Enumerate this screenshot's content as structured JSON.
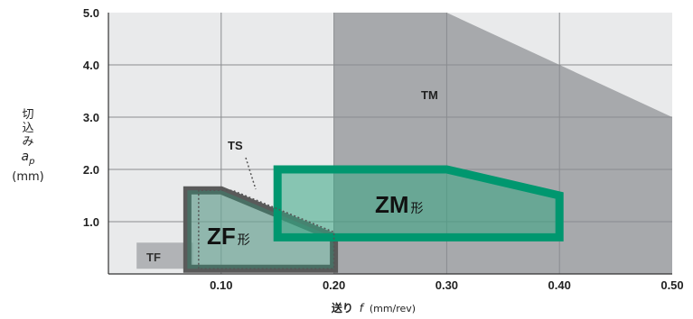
{
  "chart_data": {
    "type": "area",
    "xlabel": "送り",
    "xlabel_symbol": "f",
    "xlabel_unit": "(mm/rev)",
    "ylabel_lines": [
      "切",
      "込",
      "み"
    ],
    "ylabel_symbol": "a",
    "ylabel_subscript": "p",
    "ylabel_unit": "(mm)",
    "xlim": [
      0,
      0.5
    ],
    "ylim": [
      0,
      5.0
    ],
    "x_ticks": [
      "0.10",
      "0.20",
      "0.30",
      "0.40",
      "0.50"
    ],
    "y_ticks": [
      "1.0",
      "2.0",
      "3.0",
      "4.0",
      "5.0"
    ],
    "grid": true,
    "regions": [
      {
        "name": "TM",
        "label": "TM",
        "color": "#a7a9ac",
        "polygon": [
          [
            0.2,
            0
          ],
          [
            0.2,
            5.0
          ],
          [
            0.3,
            5.0
          ],
          [
            0.5,
            3.0
          ],
          [
            0.5,
            0
          ]
        ]
      },
      {
        "name": "TF",
        "label": "TF",
        "color": "#b1b3b6",
        "polygon": [
          [
            0.025,
            0.1
          ],
          [
            0.075,
            0.1
          ],
          [
            0.075,
            0.6
          ],
          [
            0.025,
            0.6
          ]
        ]
      },
      {
        "name": "TS",
        "label": "TS",
        "color": "#777777",
        "polygon": [
          [
            0.08,
            0.1
          ],
          [
            0.08,
            1.6
          ],
          [
            0.11,
            1.6
          ],
          [
            0.2,
            0.8
          ],
          [
            0.2,
            0.1
          ]
        ]
      },
      {
        "name": "ZF形",
        "label": "ZF",
        "label_suffix": "形",
        "color": "#5a5a5a",
        "polygon": [
          [
            0.07,
            0.1
          ],
          [
            0.07,
            1.6
          ],
          [
            0.1,
            1.6
          ],
          [
            0.2,
            0.7
          ],
          [
            0.2,
            0.1
          ]
        ]
      },
      {
        "name": "ZM形",
        "label": "ZM",
        "label_suffix": "形",
        "color": "#00976f",
        "polygon": [
          [
            0.15,
            0.7
          ],
          [
            0.15,
            2.0
          ],
          [
            0.3,
            2.0
          ],
          [
            0.4,
            1.5
          ],
          [
            0.4,
            0.7
          ]
        ]
      }
    ]
  }
}
